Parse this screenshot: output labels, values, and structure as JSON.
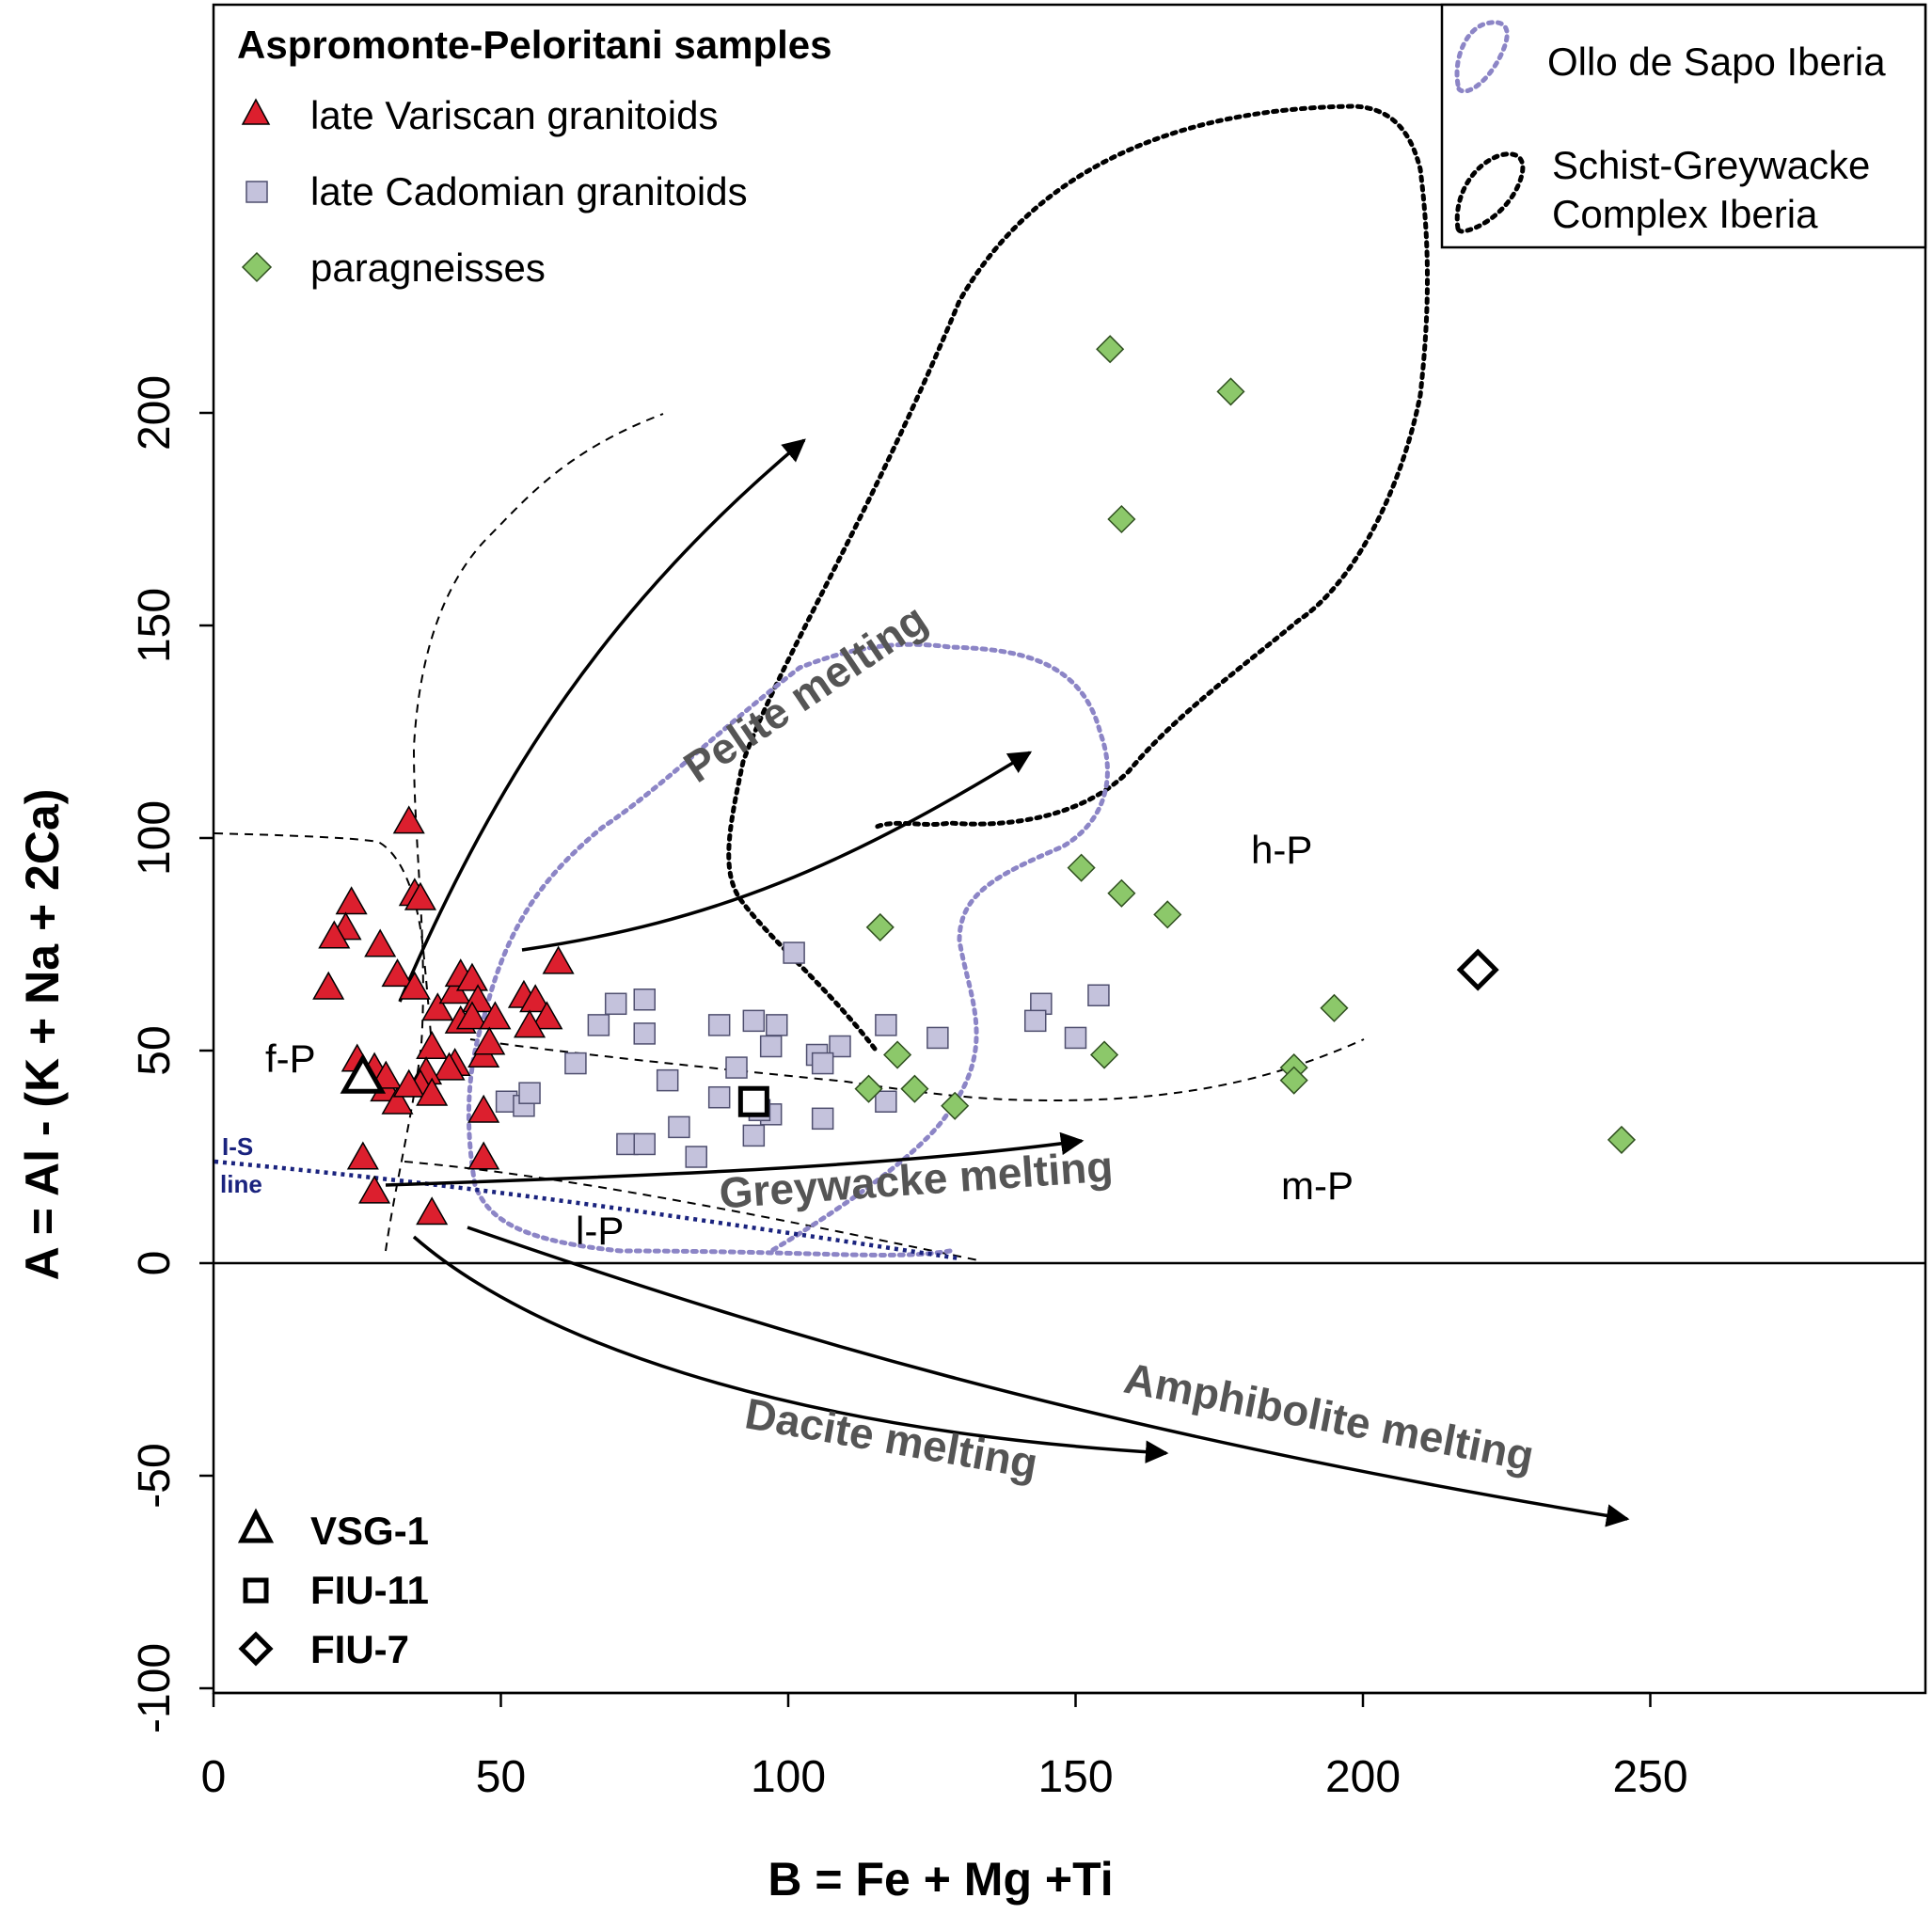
{
  "chart_data": {
    "type": "scatter",
    "title": "",
    "xlabel": "B = Fe + Mg +Ti",
    "ylabel": "A = Al - (K + Na + 2Ca)",
    "xlim": [
      0,
      300
    ],
    "ylim": [
      -100,
      295
    ],
    "xticks": [
      0,
      50,
      100,
      150,
      200,
      250
    ],
    "yticks": [
      -100,
      -50,
      0,
      50,
      100,
      150,
      200
    ],
    "xtick_labels": [
      "0",
      "50",
      "100",
      "150",
      "200",
      "250"
    ],
    "ytick_labels": [
      "-100",
      "-50",
      "0",
      "50",
      "100",
      "150",
      "200"
    ],
    "legend_title": "Aspromonte-Peloritani samples",
    "series": [
      {
        "name": "late Variscan granitoids",
        "marker": "triangle",
        "color": "#dc1f2e",
        "points": [
          [
            34,
            104
          ],
          [
            35,
            87
          ],
          [
            36,
            86
          ],
          [
            24,
            85
          ],
          [
            23,
            79
          ],
          [
            21,
            77
          ],
          [
            29,
            75
          ],
          [
            20,
            65
          ],
          [
            32,
            68
          ],
          [
            35,
            65
          ],
          [
            39,
            60
          ],
          [
            42,
            64
          ],
          [
            43,
            68
          ],
          [
            45,
            67
          ],
          [
            43,
            57
          ],
          [
            46,
            62
          ],
          [
            45,
            58
          ],
          [
            49,
            58
          ],
          [
            38,
            51
          ],
          [
            42,
            47
          ],
          [
            41,
            46
          ],
          [
            37,
            45
          ],
          [
            47,
            49
          ],
          [
            48,
            52
          ],
          [
            25,
            48
          ],
          [
            28,
            46
          ],
          [
            30,
            41
          ],
          [
            32,
            38
          ],
          [
            30,
            44
          ],
          [
            36,
            42
          ],
          [
            34,
            42
          ],
          [
            38,
            40
          ],
          [
            47,
            36
          ],
          [
            47,
            25
          ],
          [
            26,
            25
          ],
          [
            28,
            17
          ],
          [
            38,
            12
          ],
          [
            54,
            63
          ],
          [
            56,
            62
          ],
          [
            58,
            58
          ],
          [
            55,
            56
          ],
          [
            60,
            71
          ]
        ]
      },
      {
        "name": "late Cadomian granitoids",
        "marker": "square",
        "color": "#c4c2dc",
        "points": [
          [
            101,
            73
          ],
          [
            70,
            61
          ],
          [
            75,
            62
          ],
          [
            67,
            56
          ],
          [
            75,
            54
          ],
          [
            94,
            57
          ],
          [
            98,
            56
          ],
          [
            88,
            56
          ],
          [
            97,
            51
          ],
          [
            105,
            49
          ],
          [
            109,
            51
          ],
          [
            106,
            47
          ],
          [
            117,
            56
          ],
          [
            126,
            53
          ],
          [
            63,
            47
          ],
          [
            79,
            43
          ],
          [
            91,
            46
          ],
          [
            88,
            39
          ],
          [
            97,
            35
          ],
          [
            95,
            36
          ],
          [
            94,
            30
          ],
          [
            106,
            34
          ],
          [
            117,
            38
          ],
          [
            51,
            38
          ],
          [
            54,
            37
          ],
          [
            55,
            40
          ],
          [
            72,
            28
          ],
          [
            75,
            28
          ],
          [
            81,
            32
          ],
          [
            84,
            25
          ],
          [
            144,
            61
          ],
          [
            143,
            57
          ],
          [
            150,
            53
          ],
          [
            154,
            63
          ]
        ]
      },
      {
        "name": "paragneisses",
        "marker": "diamond",
        "color": "#8cc86a",
        "points": [
          [
            156,
            215
          ],
          [
            177,
            205
          ],
          [
            158,
            175
          ],
          [
            151,
            93
          ],
          [
            158,
            87
          ],
          [
            166,
            82
          ],
          [
            116,
            79
          ],
          [
            119,
            49
          ],
          [
            155,
            49
          ],
          [
            114,
            41
          ],
          [
            122,
            41
          ],
          [
            129,
            37
          ],
          [
            195,
            60
          ],
          [
            188,
            46
          ],
          [
            188,
            43
          ],
          [
            245,
            29
          ]
        ]
      }
    ],
    "special_samples": [
      {
        "name": "VSG-1",
        "marker": "triangle-open",
        "x": 26,
        "y": 44
      },
      {
        "name": "FIU-11",
        "marker": "square-open",
        "x": 94,
        "y": 38
      },
      {
        "name": "FIU-7",
        "marker": "diamond-open",
        "x": 220,
        "y": 69
      }
    ],
    "field_labels": [
      "f-P",
      "h-P",
      "m-P",
      "l-P"
    ],
    "is_line_label": [
      "I-S",
      "line"
    ],
    "trend_labels": [
      "Pelite melting",
      "Greywacke melting",
      "Dacite melting",
      "Amphibolite melting"
    ],
    "reference_fields": [
      "Ollo de Sapo Iberia",
      "Schist-Greywacke Complex Iberia"
    ],
    "reference_legend_lines": [
      [
        "Ollo de Sapo Iberia"
      ],
      [
        "Schist-Greywacke",
        "Complex Iberia"
      ]
    ]
  }
}
